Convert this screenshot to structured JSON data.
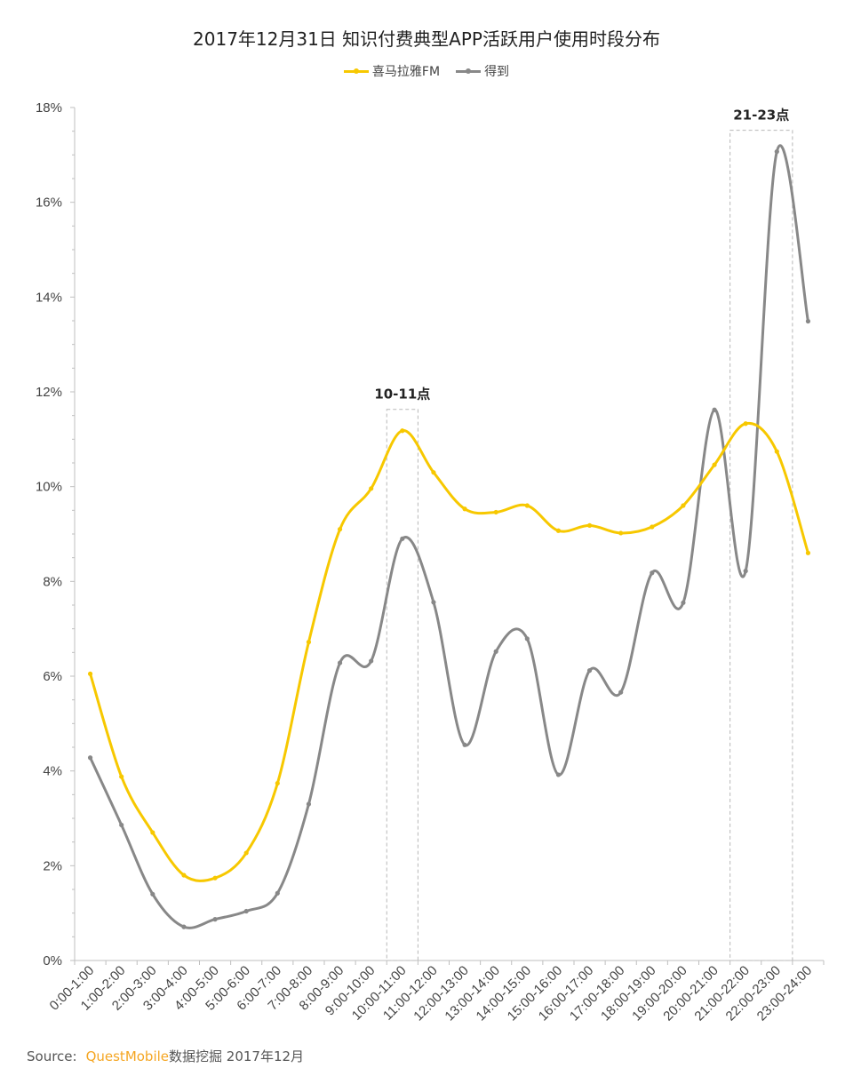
{
  "chart_data": {
    "type": "line",
    "title": "2017年12月31日 知识付费典型APP活跃用户使用时段分布",
    "xlabel": "",
    "ylabel": "",
    "categories": [
      "0:00-1:00",
      "1:00-2:00",
      "2:00-3:00",
      "3:00-4:00",
      "4:00-5:00",
      "5:00-6:00",
      "6:00-7:00",
      "7:00-8:00",
      "8:00-9:00",
      "9:00-10:00",
      "10:00-11:00",
      "11:00-12:00",
      "12:00-13:00",
      "13:00-14:00",
      "14:00-15:00",
      "15:00-16:00",
      "16:00-17:00",
      "17:00-18:00",
      "18:00-19:00",
      "19:00-20:00",
      "20:00-21:00",
      "21:00-22:00",
      "22:00-23:00",
      "23:00-24:00"
    ],
    "ylim": [
      0,
      18
    ],
    "yticks": [
      "0%",
      "2%",
      "4%",
      "6%",
      "8%",
      "10%",
      "12%",
      "14%",
      "16%",
      "18%"
    ],
    "grid": false,
    "legend_position": "top-center",
    "series": [
      {
        "name": "喜马拉雅FM",
        "color": "#f7c800",
        "values": [
          6.05,
          3.88,
          2.7,
          1.8,
          1.74,
          2.27,
          3.74,
          6.72,
          9.1,
          9.96,
          11.18,
          10.3,
          9.53,
          9.46,
          9.6,
          9.07,
          9.18,
          9.02,
          9.15,
          9.6,
          10.46,
          11.33,
          10.74,
          8.6
        ]
      },
      {
        "name": "得到",
        "color": "#888888",
        "values": [
          4.28,
          2.86,
          1.4,
          0.71,
          0.87,
          1.04,
          1.42,
          3.3,
          6.28,
          6.32,
          8.9,
          7.56,
          4.55,
          6.52,
          6.79,
          3.92,
          6.12,
          5.66,
          8.18,
          7.55,
          11.62,
          8.22,
          17.07,
          13.49
        ]
      }
    ],
    "annotations": [
      {
        "label": "10-11点",
        "from_category": 10,
        "to_category": 10
      },
      {
        "label": "21-23点",
        "from_category": 21,
        "to_category": 22
      }
    ]
  },
  "source": {
    "prefix": "Source:",
    "brand": "QuestMobile",
    "rest": "数据挖掘 2017年12月"
  }
}
